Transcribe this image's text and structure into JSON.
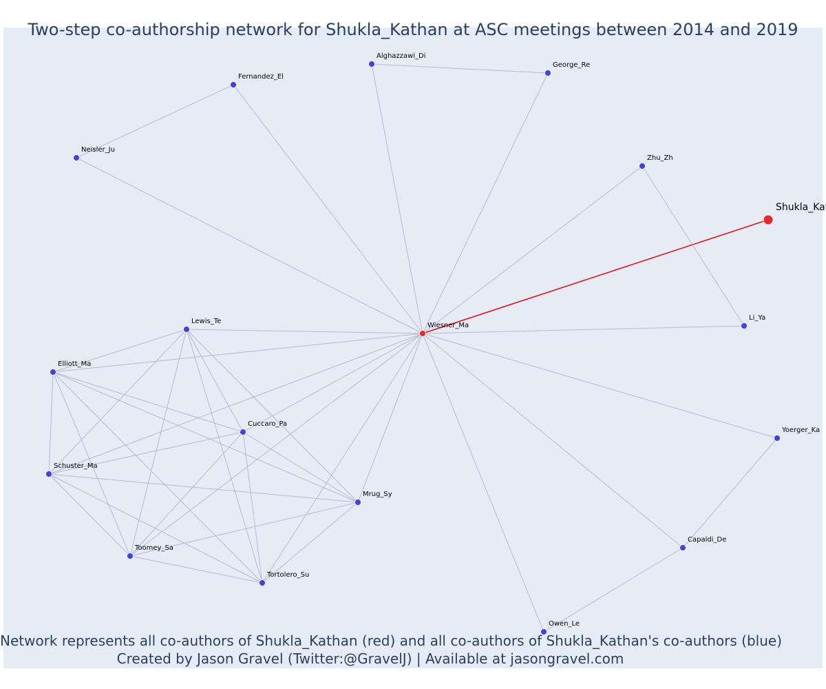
{
  "title": "Two-step co-authorship network for Shukla_Kathan at ASC meetings between 2014 and 2019",
  "caption": {
    "line1": "Network represents all co-authors of Shukla_Kathan (red) and all co-authors of Shukla_Kathan's co-authors (blue)",
    "line2": "Created by Jason Gravel (Twitter:@GravelJ) | Available at jasongravel.com"
  },
  "colors": {
    "background": "#e5ecf6",
    "edge": "#b6b9cf",
    "focal_edge": "#e8141a",
    "blue_node": "#4340ee",
    "red_node": "#ea2a2a",
    "text": "#2a3f5f"
  },
  "network": {
    "focal": "Shukla_Kathan",
    "nodes": [
      {
        "id": "Shukla_Kathan",
        "label": "Shukla_Kathan",
        "group": "focal"
      },
      {
        "id": "Wiesner_Ma",
        "label": "Wiesner_Ma",
        "group": "co-author"
      },
      {
        "id": "Alghazzawi_Di",
        "label": "Alghazzawi_Di",
        "group": "second-step"
      },
      {
        "id": "George_Re",
        "label": "George_Re",
        "group": "second-step"
      },
      {
        "id": "Fernandez_El",
        "label": "Fernandez_El",
        "group": "second-step"
      },
      {
        "id": "Neisler_Ju",
        "label": "Neisler_Ju",
        "group": "second-step"
      },
      {
        "id": "Zhu_Zh",
        "label": "Zhu_Zh",
        "group": "second-step"
      },
      {
        "id": "Li_Ya",
        "label": "Li_Ya",
        "group": "second-step"
      },
      {
        "id": "Lewis_Te",
        "label": "Lewis_Te",
        "group": "second-step"
      },
      {
        "id": "Elliott_Ma",
        "label": "Elliott_Ma",
        "group": "second-step"
      },
      {
        "id": "Cuccaro_Pa",
        "label": "Cuccaro_Pa",
        "group": "second-step"
      },
      {
        "id": "Schuster_Ma",
        "label": "Schuster_Ma",
        "group": "second-step"
      },
      {
        "id": "Mrug_Sy",
        "label": "Mrug_Sy",
        "group": "second-step"
      },
      {
        "id": "Toomey_Sa",
        "label": "Toomey_Sa",
        "group": "second-step"
      },
      {
        "id": "Tortolero_Su",
        "label": "Tortolero_Su",
        "group": "second-step"
      },
      {
        "id": "Yoerger_Ka",
        "label": "Yoerger_Ka",
        "group": "second-step"
      },
      {
        "id": "Capaldi_De",
        "label": "Capaldi_De",
        "group": "second-step"
      },
      {
        "id": "Owen_Le",
        "label": "Owen_Le",
        "group": "second-step"
      }
    ],
    "edges": [
      [
        "Shukla_Kathan",
        "Wiesner_Ma"
      ],
      [
        "Wiesner_Ma",
        "Alghazzawi_Di"
      ],
      [
        "Wiesner_Ma",
        "George_Re"
      ],
      [
        "Alghazzawi_Di",
        "George_Re"
      ],
      [
        "Wiesner_Ma",
        "Fernandez_El"
      ],
      [
        "Fernandez_El",
        "Neisler_Ju"
      ],
      [
        "Wiesner_Ma",
        "Neisler_Ju"
      ],
      [
        "Wiesner_Ma",
        "Zhu_Zh"
      ],
      [
        "Zhu_Zh",
        "Li_Ya"
      ],
      [
        "Wiesner_Ma",
        "Li_Ya"
      ],
      [
        "Wiesner_Ma",
        "Yoerger_Ka"
      ],
      [
        "Yoerger_Ka",
        "Capaldi_De"
      ],
      [
        "Wiesner_Ma",
        "Capaldi_De"
      ],
      [
        "Capaldi_De",
        "Owen_Le"
      ],
      [
        "Wiesner_Ma",
        "Owen_Le"
      ],
      [
        "Wiesner_Ma",
        "Lewis_Te"
      ],
      [
        "Wiesner_Ma",
        "Elliott_Ma"
      ],
      [
        "Wiesner_Ma",
        "Cuccaro_Pa"
      ],
      [
        "Wiesner_Ma",
        "Schuster_Ma"
      ],
      [
        "Wiesner_Ma",
        "Mrug_Sy"
      ],
      [
        "Wiesner_Ma",
        "Toomey_Sa"
      ],
      [
        "Wiesner_Ma",
        "Tortolero_Su"
      ],
      [
        "Lewis_Te",
        "Elliott_Ma"
      ],
      [
        "Lewis_Te",
        "Cuccaro_Pa"
      ],
      [
        "Lewis_Te",
        "Schuster_Ma"
      ],
      [
        "Lewis_Te",
        "Mrug_Sy"
      ],
      [
        "Lewis_Te",
        "Toomey_Sa"
      ],
      [
        "Lewis_Te",
        "Tortolero_Su"
      ],
      [
        "Elliott_Ma",
        "Cuccaro_Pa"
      ],
      [
        "Elliott_Ma",
        "Schuster_Ma"
      ],
      [
        "Elliott_Ma",
        "Mrug_Sy"
      ],
      [
        "Elliott_Ma",
        "Toomey_Sa"
      ],
      [
        "Elliott_Ma",
        "Tortolero_Su"
      ],
      [
        "Cuccaro_Pa",
        "Schuster_Ma"
      ],
      [
        "Cuccaro_Pa",
        "Mrug_Sy"
      ],
      [
        "Cuccaro_Pa",
        "Toomey_Sa"
      ],
      [
        "Cuccaro_Pa",
        "Tortolero_Su"
      ],
      [
        "Schuster_Ma",
        "Mrug_Sy"
      ],
      [
        "Schuster_Ma",
        "Toomey_Sa"
      ],
      [
        "Schuster_Ma",
        "Tortolero_Su"
      ],
      [
        "Mrug_Sy",
        "Toomey_Sa"
      ],
      [
        "Mrug_Sy",
        "Tortolero_Su"
      ],
      [
        "Toomey_Sa",
        "Tortolero_Su"
      ]
    ]
  }
}
